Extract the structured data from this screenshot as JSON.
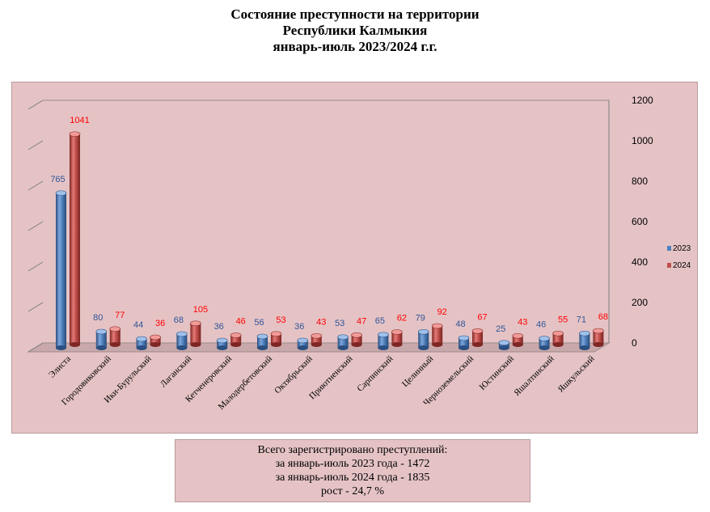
{
  "title": {
    "line1": "Состояние преступности на территории",
    "line2": "Республики Калмыкия",
    "line3": "январь-июль 2023/2024 г.г."
  },
  "colors": {
    "background": "#e5c3c5",
    "series_2023": "#4f81bd",
    "series_2024": "#c0504d",
    "label_2023": "#2f5597",
    "label_2024": "#ff0000"
  },
  "chart_data": {
    "type": "bar",
    "style": "3d-cylinder",
    "categories": [
      "Элиста",
      "Городовиковский",
      "Ики-Бурульский",
      "Лаганский",
      "Кетченеровский",
      "Малодербетовский",
      "Октябрьский",
      "Приютненский",
      "Сарпинский",
      "Целинный",
      "Черноземельский",
      "Юстинский",
      "Яшалтинский",
      "Яшкульский"
    ],
    "series": [
      {
        "name": "2023",
        "values": [
          765,
          80,
          44,
          68,
          36,
          56,
          36,
          53,
          65,
          79,
          48,
          25,
          46,
          71
        ]
      },
      {
        "name": "2024",
        "values": [
          1041,
          77,
          36,
          105,
          46,
          53,
          43,
          47,
          62,
          92,
          67,
          43,
          55,
          68
        ]
      }
    ],
    "y_ticks": [
      "0",
      "200",
      "400",
      "600",
      "800",
      "1000",
      "1200"
    ],
    "ylim": [
      0,
      1200
    ],
    "grid": false,
    "legend_position": "right",
    "y_axis_position": "right"
  },
  "summary": {
    "line1": "Всего зарегистрировано преступлений:",
    "line2": "за январь-июль 2023 года - 1472",
    "line3": "за январь-июль 2024 года - 1835",
    "line4": "рост - 24,7 %"
  }
}
